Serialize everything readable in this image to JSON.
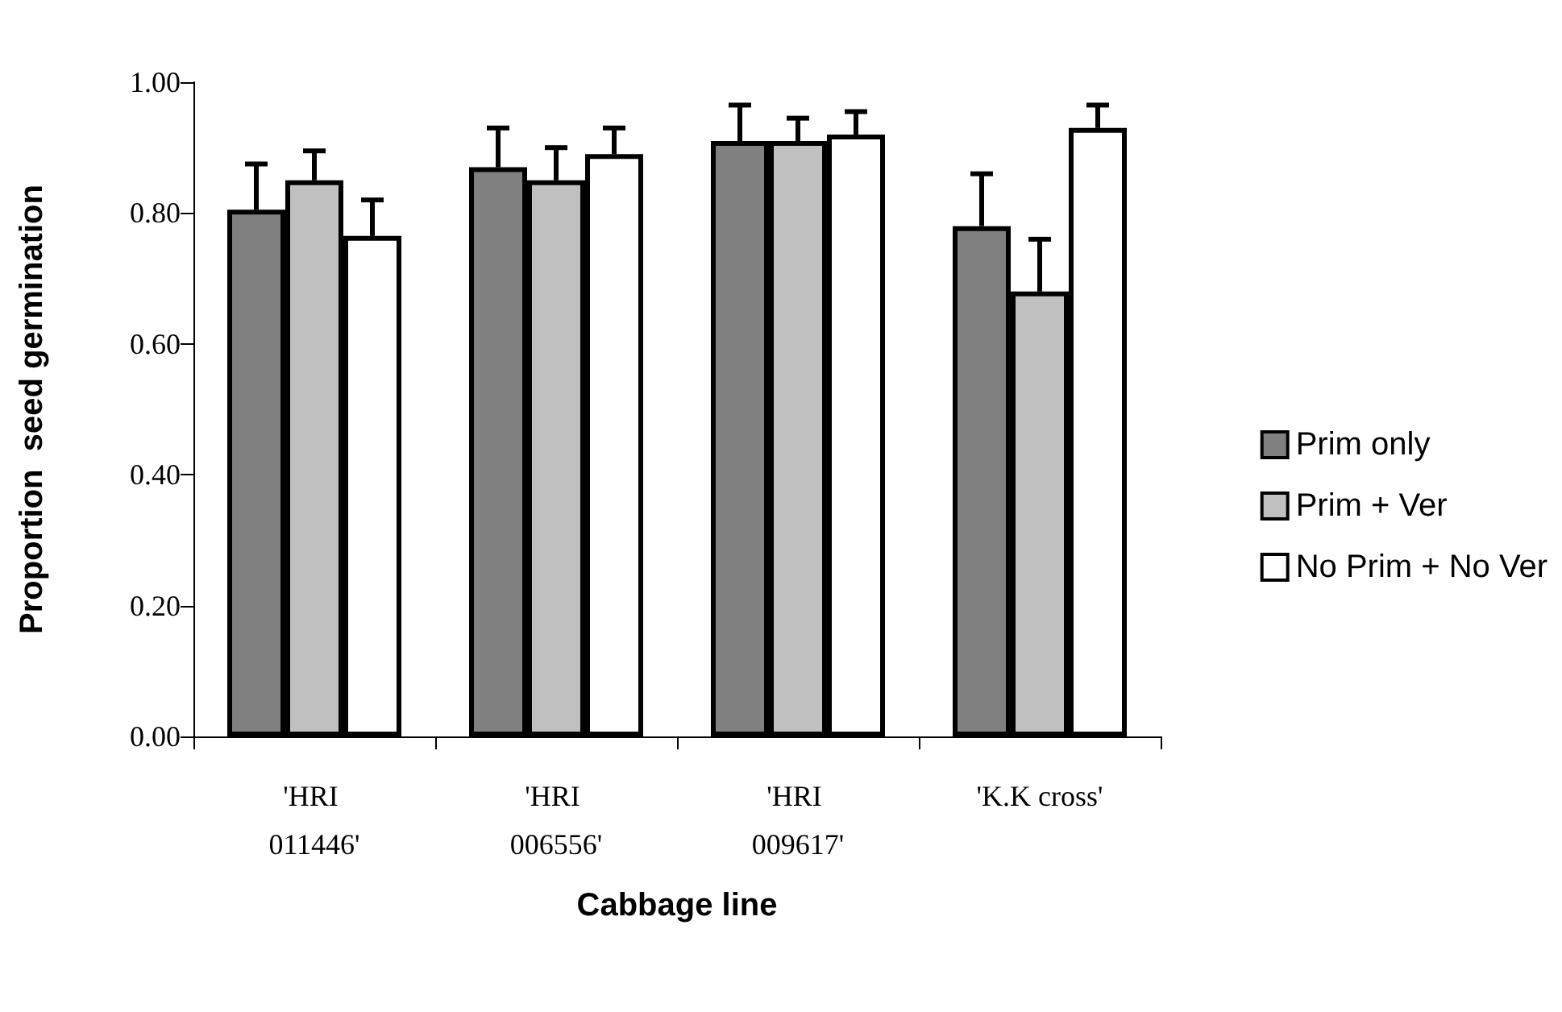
{
  "chart_data": {
    "type": "bar",
    "xlabel": "Cabbage line",
    "ylabel": "Proportion  seed germination",
    "categories": [
      "'HRI 011446'",
      "'HRI 006556'",
      "'HRI 009617'",
      "'K.K cross'"
    ],
    "series": [
      {
        "name": "Prim only",
        "color": "#808080",
        "values": [
          0.805,
          0.87,
          0.91,
          0.78
        ],
        "errors": [
          0.07,
          0.06,
          0.055,
          0.08
        ]
      },
      {
        "name": "Prim + Ver",
        "color": "#c0c0c0",
        "values": [
          0.85,
          0.85,
          0.91,
          0.68
        ],
        "errors": [
          0.045,
          0.05,
          0.035,
          0.08
        ]
      },
      {
        "name": "No Prim + No Ver",
        "color": "#ffffff",
        "values": [
          0.765,
          0.89,
          0.92,
          0.93
        ],
        "errors": [
          0.055,
          0.04,
          0.035,
          0.035
        ]
      }
    ],
    "ylim": [
      0,
      1
    ],
    "yticks": [
      {
        "value": 0,
        "label": "0.00"
      },
      {
        "value": 0.2,
        "label": "0.20"
      },
      {
        "value": 0.4,
        "label": "0.40"
      },
      {
        "value": 0.6,
        "label": "0.60"
      },
      {
        "value": 0.8,
        "label": "0.80"
      },
      {
        "value": 1,
        "label": "1.00"
      }
    ],
    "grid": false,
    "legend": "right"
  }
}
